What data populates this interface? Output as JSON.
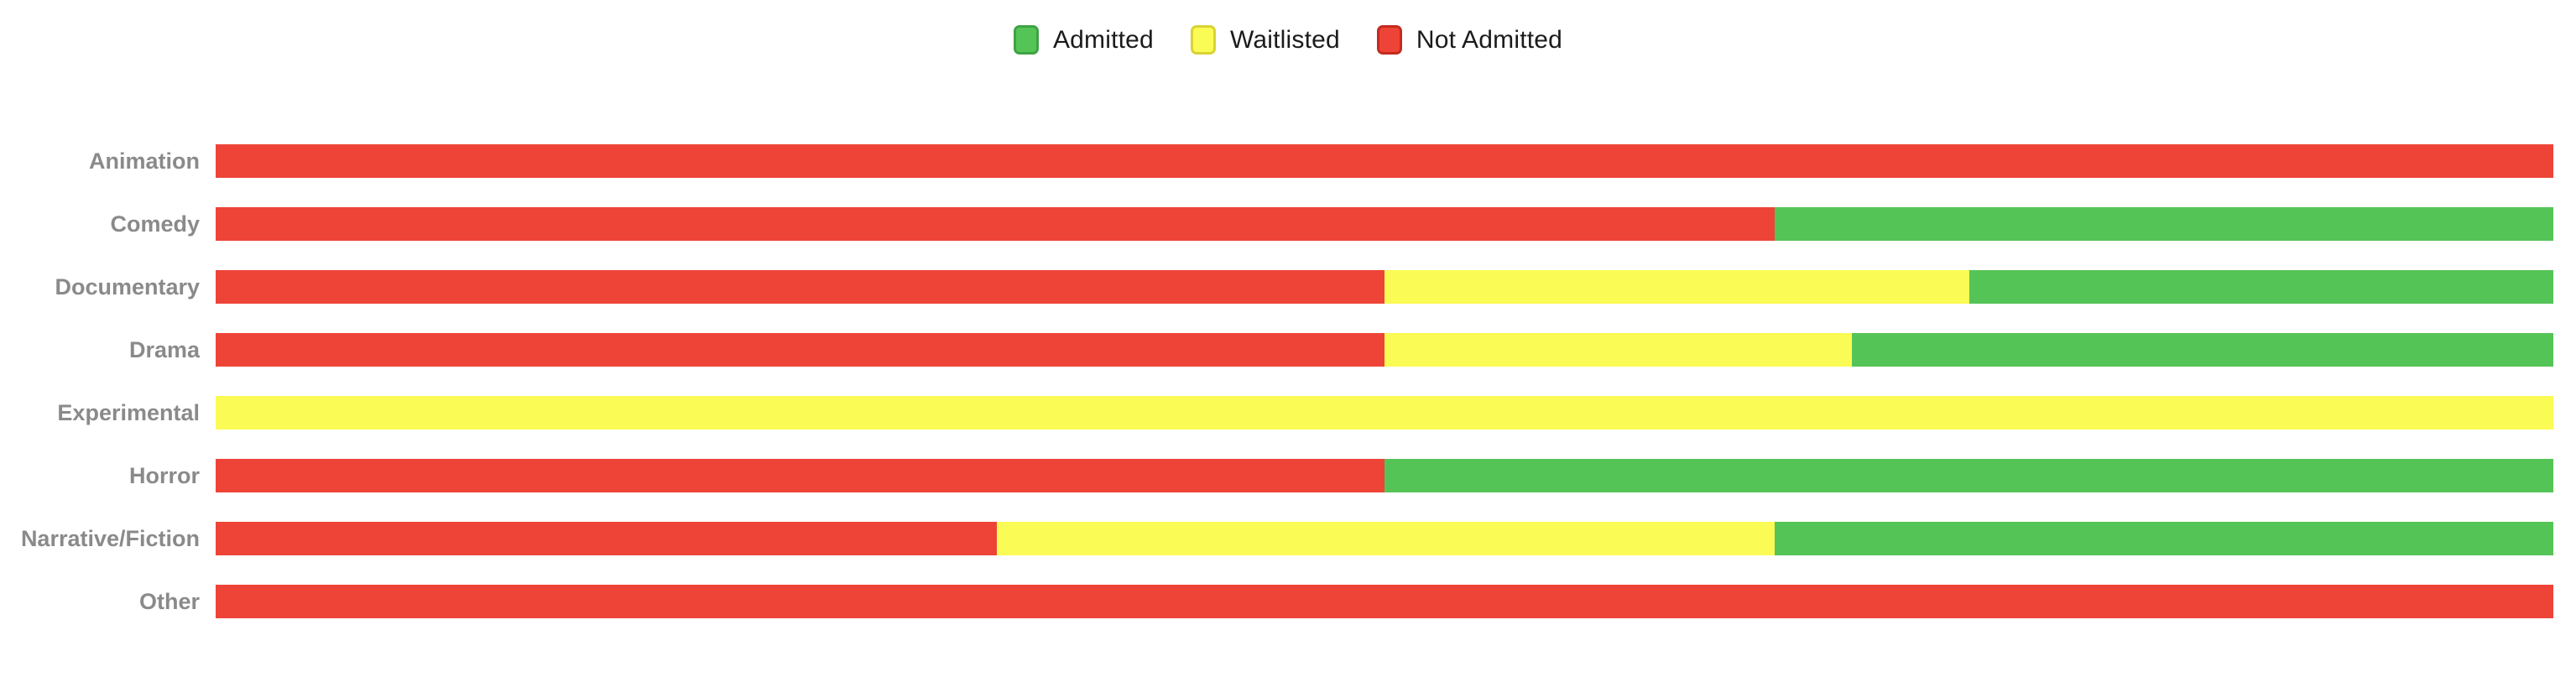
{
  "colors": {
    "background": "#FFFFFF",
    "admitted": "#55C457",
    "admitted_border": "#3FA344",
    "waitlisted": "#FBFB55",
    "waitlisted_border": "#D9D335",
    "not_admitted": "#EE4438",
    "not_admitted_border": "#C52A1F",
    "category_label_text": "#8A8A8A",
    "legend_text": "#1B1B1B"
  },
  "legend": {
    "items": [
      {
        "label": "Admitted",
        "color_key": "admitted"
      },
      {
        "label": "Waitlisted",
        "color_key": "waitlisted"
      },
      {
        "label": "Not Admitted",
        "color_key": "not_admitted"
      }
    ]
  },
  "chart_data": {
    "type": "bar",
    "orientation": "horizontal",
    "stacked": true,
    "unit": "percent",
    "xlim": [
      0,
      100
    ],
    "grid": false,
    "legend_position": "top-center",
    "value_axis_visible": false,
    "categories": [
      "Animation",
      "Comedy",
      "Documentary",
      "Drama",
      "Experimental",
      "Horror",
      "Narrative/Fiction",
      "Other"
    ],
    "series": [
      {
        "name": "Admitted",
        "color_key": "admitted",
        "values": [
          0,
          33.3,
          25,
          30,
          0,
          50,
          33.3,
          0
        ]
      },
      {
        "name": "Waitlisted",
        "color_key": "waitlisted",
        "values": [
          0,
          0,
          25,
          20,
          100,
          0,
          33.3,
          0
        ]
      },
      {
        "name": "Not Admitted",
        "color_key": "not_admitted",
        "values": [
          100,
          66.7,
          50,
          50,
          0,
          50,
          33.4,
          100
        ]
      }
    ],
    "stack_order_left_to_right": [
      "Not Admitted",
      "Waitlisted",
      "Admitted"
    ]
  }
}
